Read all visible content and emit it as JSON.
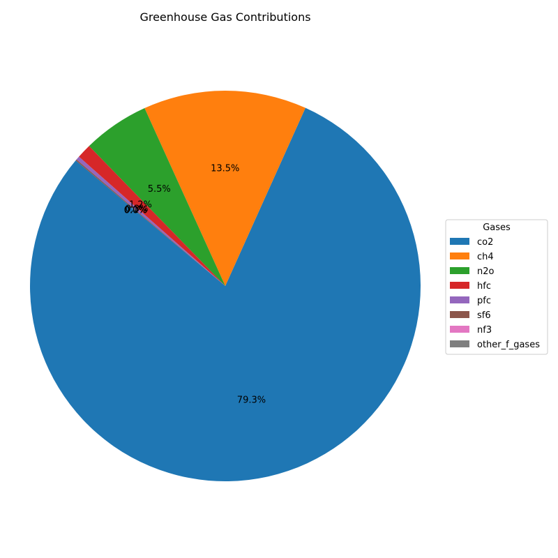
{
  "chart_data": {
    "type": "pie",
    "title": "Greenhouse Gas Contributions",
    "legend": {
      "title": "Gases",
      "placement": "center-right"
    },
    "start_angle_deg": 140,
    "direction": "counterclockwise",
    "slices": [
      {
        "label": "co2",
        "value": 79.3,
        "pct_label": "79.3%",
        "color": "#1f77b4"
      },
      {
        "label": "ch4",
        "value": 13.5,
        "pct_label": "13.5%",
        "color": "#ff7f0e"
      },
      {
        "label": "n2o",
        "value": 5.5,
        "pct_label": "5.5%",
        "color": "#2ca02c"
      },
      {
        "label": "hfc",
        "value": 1.2,
        "pct_label": "1.2%",
        "color": "#d62728"
      },
      {
        "label": "pfc",
        "value": 0.3,
        "pct_label": "0.3%",
        "color": "#9467bd"
      },
      {
        "label": "sf6",
        "value": 0.1,
        "pct_label": "0.1%",
        "color": "#8c564b"
      },
      {
        "label": "nf3",
        "value": 0.0,
        "pct_label": "0.0%",
        "color": "#e377c2"
      },
      {
        "label": "other_f_gases",
        "value": 0.0,
        "pct_label": "0.0%",
        "color": "#7f7f7f"
      }
    ]
  }
}
